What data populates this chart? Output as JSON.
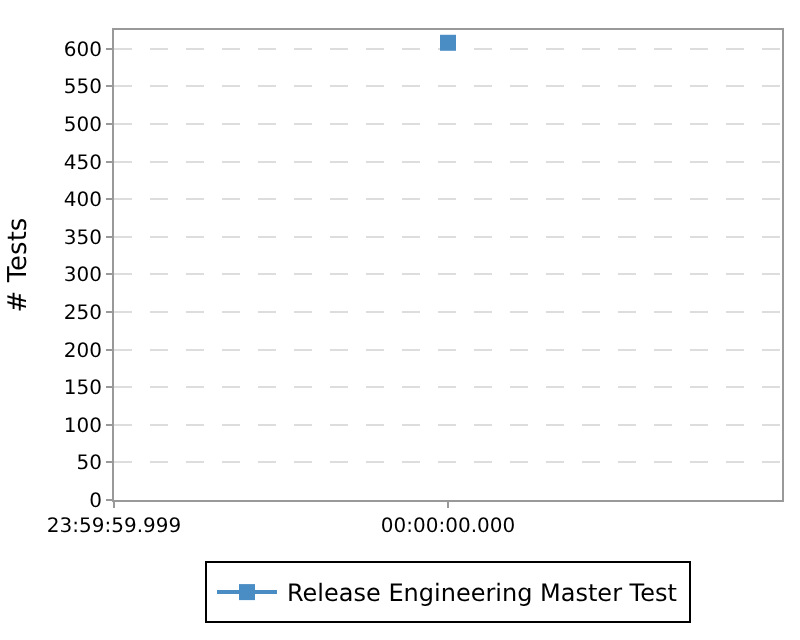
{
  "chart_data": {
    "type": "line",
    "ylabel": "# Tests",
    "categories": [
      "23:59:59.999",
      "00:00:00.000",
      null
    ],
    "series": [
      {
        "name": "Release Engineering Master Test",
        "color": "#4a8cc4",
        "values": [
          null,
          608,
          null
        ]
      }
    ],
    "ylim": [
      0,
      625
    ],
    "yticks": [
      0,
      50,
      100,
      150,
      200,
      250,
      300,
      350,
      400,
      450,
      500,
      550,
      600
    ],
    "grid": "y",
    "legend": "bottom",
    "marker": "square"
  }
}
